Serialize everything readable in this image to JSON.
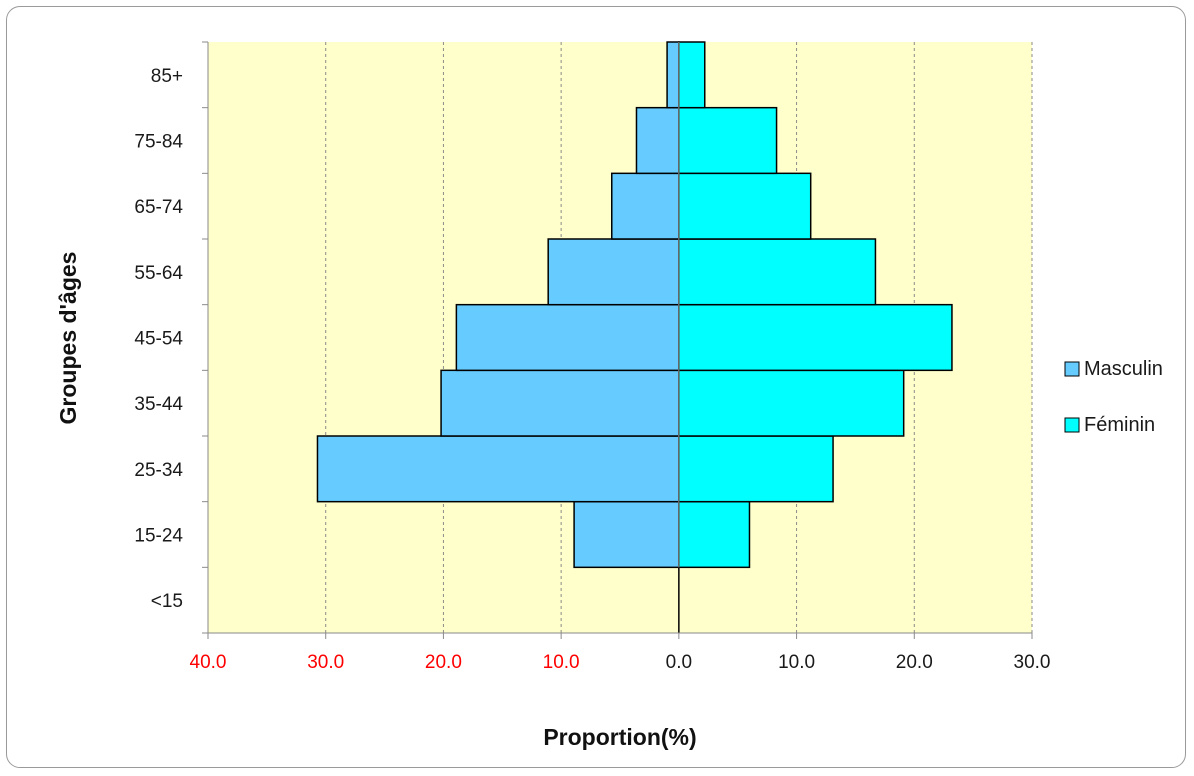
{
  "chart_data": {
    "type": "bar",
    "orientation": "horizontal",
    "variant": "population-pyramid",
    "categories": [
      "<15",
      "15-24",
      "25-34",
      "35-44",
      "45-54",
      "55-64",
      "65-74",
      "75-84",
      "85+"
    ],
    "series": [
      {
        "name": "Masculin",
        "side": "left",
        "values": [
          0.0,
          8.9,
          30.7,
          20.2,
          18.9,
          11.1,
          5.7,
          3.6,
          1.0
        ],
        "color": "#66ccff"
      },
      {
        "name": "Féminin",
        "side": "right",
        "values": [
          0.0,
          6.0,
          13.1,
          19.1,
          23.2,
          16.7,
          11.2,
          8.3,
          2.2
        ],
        "color": "#00ffff"
      }
    ],
    "xlabel": "Proportion(%)",
    "ylabel": "Groupes d'âges",
    "xlim": [
      -40,
      30
    ],
    "x_ticks": [
      {
        "value": -40,
        "label": "40.0",
        "color": "#ff0000"
      },
      {
        "value": -30,
        "label": "30.0",
        "color": "#ff0000"
      },
      {
        "value": -20,
        "label": "20.0",
        "color": "#ff0000"
      },
      {
        "value": -10,
        "label": "10.0",
        "color": "#ff0000"
      },
      {
        "value": 0,
        "label": "0.0",
        "color": "#1a1a1a"
      },
      {
        "value": 10,
        "label": "10.0",
        "color": "#1a1a1a"
      },
      {
        "value": 20,
        "label": "20.0",
        "color": "#1a1a1a"
      },
      {
        "value": 30,
        "label": "30.0",
        "color": "#1a1a1a"
      }
    ],
    "grid": "vertical-dashed",
    "legend_position": "right",
    "plot_background": "#ffffcc"
  }
}
